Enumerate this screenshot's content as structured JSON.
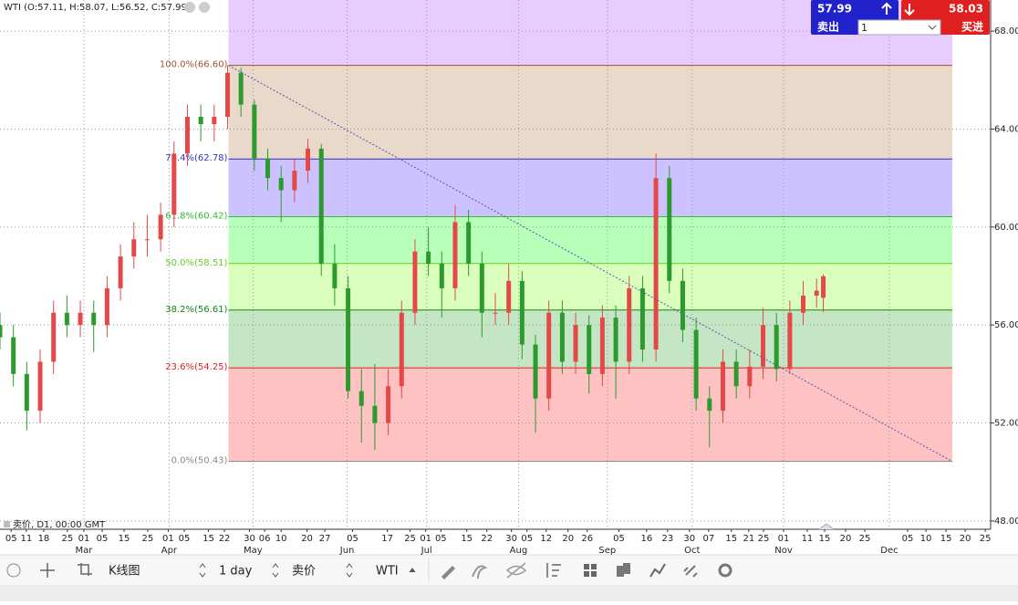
{
  "header": "WTI (O:57.11, H:58.07, L:56.52, C:57.99)",
  "trade_panel": {
    "sell_price": "57.99",
    "sell_label": "卖出",
    "buy_price": "58.03",
    "buy_label": "买进",
    "quantity": "1"
  },
  "chart_info": "卖价, D1, 00:00 GMT",
  "toolbar": {
    "chart_type": "K线图",
    "period": "1 day",
    "price_type": "卖价",
    "symbol": "WTI"
  },
  "chart_data": {
    "type": "candlestick",
    "up_color": "#e54848",
    "down_color": "#2c9a2c",
    "xlim": [
      0,
      222
    ],
    "ylim": [
      47.66,
      69.27
    ],
    "yticks": [
      {
        "value": 48,
        "label": "48.00"
      },
      {
        "value": 52,
        "label": "52.00"
      },
      {
        "value": 56,
        "label": "56.00"
      },
      {
        "value": 60,
        "label": "60.00"
      },
      {
        "value": 64,
        "label": "64.00"
      },
      {
        "value": 68,
        "label": "68.00"
      }
    ],
    "xticks": [
      {
        "value": 2.5,
        "label": "05"
      },
      {
        "value": 5.9,
        "label": "11"
      },
      {
        "value": 9.8,
        "label": "18"
      },
      {
        "value": 15.1,
        "label": "25"
      },
      {
        "value": 18.8,
        "label": "01"
      },
      {
        "value": 22.9,
        "label": "05"
      },
      {
        "value": 27.8,
        "label": "15"
      },
      {
        "value": 33.1,
        "label": "25"
      },
      {
        "value": 37.7,
        "label": "01"
      },
      {
        "value": 41.3,
        "label": "05"
      },
      {
        "value": 46.7,
        "label": "15"
      },
      {
        "value": 50.3,
        "label": "22"
      },
      {
        "value": 55.9,
        "label": "30"
      },
      {
        "value": 59.3,
        "label": "06"
      },
      {
        "value": 63.0,
        "label": "10"
      },
      {
        "value": 68.8,
        "label": "20"
      },
      {
        "value": 72.8,
        "label": "27"
      },
      {
        "value": 79.0,
        "label": "05"
      },
      {
        "value": 86.8,
        "label": "17"
      },
      {
        "value": 91.9,
        "label": "25"
      },
      {
        "value": 95.4,
        "label": "01"
      },
      {
        "value": 98.8,
        "label": "05"
      },
      {
        "value": 104.6,
        "label": "15"
      },
      {
        "value": 109.1,
        "label": "22"
      },
      {
        "value": 114.6,
        "label": "30"
      },
      {
        "value": 118.1,
        "label": "05"
      },
      {
        "value": 122.4,
        "label": "12"
      },
      {
        "value": 127.3,
        "label": "20"
      },
      {
        "value": 131.6,
        "label": "26"
      },
      {
        "value": 138.7,
        "label": "05"
      },
      {
        "value": 144.9,
        "label": "16"
      },
      {
        "value": 149.6,
        "label": "23"
      },
      {
        "value": 154.5,
        "label": "30"
      },
      {
        "value": 158.8,
        "label": "07"
      },
      {
        "value": 163.9,
        "label": "15"
      },
      {
        "value": 167.8,
        "label": "21"
      },
      {
        "value": 171.1,
        "label": "25"
      },
      {
        "value": 175.6,
        "label": "01"
      },
      {
        "value": 180.9,
        "label": "11"
      },
      {
        "value": 184.8,
        "label": "15"
      },
      {
        "value": 189.5,
        "label": "20"
      },
      {
        "value": 193.8,
        "label": "25"
      },
      {
        "value": 203.4,
        "label": "05"
      },
      {
        "value": 207.5,
        "label": "10"
      },
      {
        "value": 212.0,
        "label": "15"
      },
      {
        "value": 216.3,
        "label": "20"
      },
      {
        "value": 220.8,
        "label": "25"
      }
    ],
    "months": [
      {
        "value": 18.8,
        "label": "Mar"
      },
      {
        "value": 37.9,
        "label": "Apr"
      },
      {
        "value": 56.7,
        "label": "May"
      },
      {
        "value": 77.8,
        "label": "Jun"
      },
      {
        "value": 95.6,
        "label": "Jul"
      },
      {
        "value": 116.2,
        "label": "Aug"
      },
      {
        "value": 136.1,
        "label": "Sep"
      },
      {
        "value": 155.1,
        "label": "Oct"
      },
      {
        "value": 175.6,
        "label": "Nov"
      },
      {
        "value": 199.3,
        "label": "Dec"
      }
    ],
    "x": [
      0,
      3,
      6,
      9,
      12,
      15,
      18,
      21,
      24,
      27,
      30,
      33,
      36,
      39,
      42,
      45,
      48,
      51,
      54,
      57,
      60,
      63,
      66,
      69,
      72,
      75,
      78,
      81,
      84,
      87,
      90,
      93,
      96,
      99,
      102,
      105,
      108,
      111,
      114,
      117,
      120,
      123,
      126,
      129,
      132,
      135,
      138,
      141,
      144,
      147,
      150,
      153,
      156,
      159,
      162,
      165,
      168,
      171,
      174,
      177,
      180,
      183,
      184.5
    ],
    "open": [
      56,
      55.5,
      54,
      52.5,
      54.5,
      56.5,
      56,
      56.5,
      56,
      57.5,
      58.8,
      59.5,
      59.5,
      60.5,
      63,
      64.5,
      64.2,
      64.5,
      66.3,
      65,
      62.8,
      62,
      61.5,
      62.3,
      63.2,
      58.5,
      57.5,
      53.3,
      52.7,
      52,
      53.5,
      56.5,
      59,
      58.5,
      57.5,
      60.2,
      58.5,
      56.5,
      56.5,
      57.8,
      55.2,
      53,
      56.5,
      54.5,
      56,
      54,
      56.3,
      54.5,
      57.5,
      55,
      62,
      57.8,
      55.8,
      53,
      52.5,
      54.5,
      53.5,
      54.3,
      56,
      54.2,
      56.5,
      57.2,
      57.11
    ],
    "high": [
      56.5,
      56,
      54.5,
      55,
      57,
      57.2,
      57,
      57,
      58,
      59.3,
      60.2,
      60.5,
      61,
      63.5,
      65,
      65,
      65,
      66.6,
      66.5,
      65.2,
      63.2,
      62.5,
      62.8,
      63.6,
      63.4,
      59.3,
      58,
      54.2,
      54.4,
      54.2,
      57,
      59.5,
      60,
      59,
      60.9,
      60.7,
      59,
      57.3,
      58.5,
      58.2,
      55.6,
      57,
      57,
      56.5,
      56.4,
      56.8,
      56.8,
      58,
      58,
      63,
      62.5,
      58.3,
      56.3,
      53.5,
      55,
      55,
      55,
      56.7,
      56.5,
      57,
      57.8,
      57.9,
      58.07
    ],
    "low": [
      55,
      53.5,
      51.7,
      52,
      54,
      55.5,
      55.5,
      54.9,
      55.5,
      57,
      58.3,
      58.8,
      59,
      60,
      62.5,
      63.5,
      63.5,
      64,
      64.5,
      62.3,
      61.5,
      60.2,
      61,
      61.8,
      58,
      56.8,
      53,
      51.2,
      50.9,
      51.5,
      53,
      56,
      58,
      56.3,
      57,
      58,
      55.5,
      56,
      56,
      54.6,
      51.6,
      52.5,
      54,
      54,
      53.2,
      53.5,
      53,
      54,
      54.5,
      54.5,
      57.3,
      55.3,
      52.5,
      51,
      52,
      53,
      53,
      53.8,
      53.7,
      54,
      56,
      56.7,
      56.52
    ],
    "close": [
      55.5,
      54,
      52.5,
      54.5,
      56.5,
      56,
      56.5,
      56,
      57.5,
      58.8,
      59.5,
      59.5,
      60.5,
      63,
      64.5,
      64.2,
      64.5,
      66.3,
      65,
      62.8,
      62,
      61.5,
      62.3,
      63.2,
      58.5,
      57.5,
      53.3,
      52.7,
      52,
      53.5,
      56.5,
      59,
      58.5,
      57.5,
      60.2,
      58.5,
      56.5,
      56.5,
      57.8,
      55.2,
      53,
      56.5,
      54.5,
      56,
      54,
      56.3,
      54.5,
      57.5,
      55,
      62,
      57.8,
      55.8,
      53,
      52.5,
      54.5,
      53.5,
      54.3,
      56,
      54.2,
      56.5,
      57.2,
      57.4,
      57.99
    ],
    "fibonacci": {
      "start": 51.2,
      "end": 213.4,
      "top_fill": "#e8ccff",
      "levels": [
        {
          "label": "100.0%(66.60)",
          "value": 66.6,
          "color": "#a0522d",
          "fill": "#e9d9cb"
        },
        {
          "label": "76.4%(62.78)",
          "value": 62.78,
          "color": "#3333bb",
          "fill": "#cbc2ff"
        },
        {
          "label": "61.8%(60.42)",
          "value": 60.42,
          "color": "#33bb33",
          "fill": "#b8ffba"
        },
        {
          "label": "50.0%(58.51)",
          "value": 58.51,
          "color": "#66cc22",
          "fill": "#daffbd"
        },
        {
          "label": "38.2%(56.61)",
          "value": 56.61,
          "color": "#118811",
          "fill": "#c5e6c5"
        },
        {
          "label": "23.6%(54.25)",
          "value": 54.25,
          "color": "#dd2222",
          "fill": "#ffc2c2"
        },
        {
          "label": "0.0%(50.43)",
          "value": 50.43,
          "color": "#888888"
        }
      ]
    }
  }
}
